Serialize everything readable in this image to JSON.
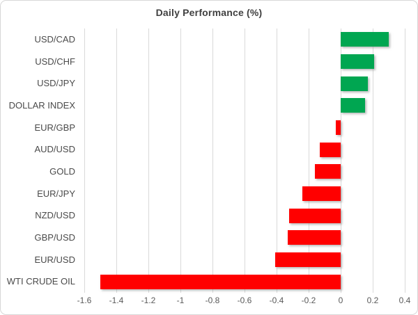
{
  "chart_data": {
    "type": "bar",
    "orientation": "horizontal",
    "title": "Daily Performance (%)",
    "categories": [
      "USD/CAD",
      "USD/CHF",
      "USD/JPY",
      "DOLLAR INDEX",
      "EUR/GBP",
      "AUD/USD",
      "GOLD",
      "EUR/JPY",
      "NZD/USD",
      "GBP/USD",
      "EUR/USD",
      "WTI CRUDE OIL"
    ],
    "values": [
      0.3,
      0.21,
      0.17,
      0.15,
      -0.03,
      -0.13,
      -0.16,
      -0.24,
      -0.32,
      -0.33,
      -0.41,
      -1.5
    ],
    "xlabel": "",
    "ylabel": "",
    "xlim": [
      -1.6,
      0.4
    ],
    "tick_values": [
      -1.6,
      -1.4,
      -1.2,
      -1.0,
      -0.8,
      -0.6,
      -0.4,
      -0.2,
      0,
      0.2,
      0.4
    ],
    "tick_labels": [
      "-1.6",
      "-1.4",
      "-1.2",
      "-1",
      "-0.8",
      "-0.6",
      "-0.4",
      "-0.2",
      "0",
      "0.2",
      "0.4"
    ],
    "grid": true,
    "legend": false,
    "colors": {
      "positive": "#00a651",
      "negative": "#ff0000",
      "gridline": "#d9d9d9",
      "title_text": "#404040",
      "category_text": "#4a4a4a",
      "tick_text": "#595959",
      "frame_border": "#d7d7d7",
      "background": "#ffffff"
    }
  }
}
